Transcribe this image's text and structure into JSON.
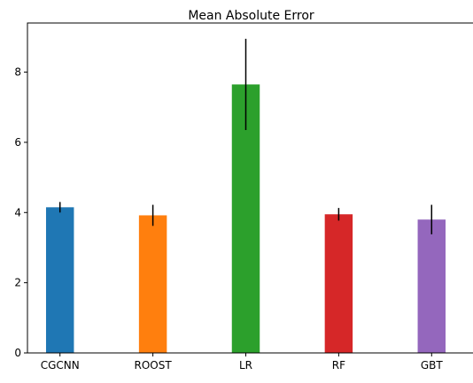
{
  "chart_data": {
    "type": "bar",
    "title": "Mean Absolute Error",
    "xlabel": "",
    "ylabel": "",
    "categories": [
      "CGCNN",
      "ROOST",
      "LR",
      "RF",
      "GBT"
    ],
    "values": [
      4.15,
      3.92,
      7.65,
      3.95,
      3.8
    ],
    "errors": [
      0.15,
      0.3,
      1.3,
      0.18,
      0.42
    ],
    "colors": [
      "#1f77b4",
      "#ff7f0e",
      "#2ca02c",
      "#d62728",
      "#9467bd"
    ],
    "ylim": [
      0,
      9.4
    ],
    "yticks": [
      0,
      2,
      4,
      6,
      8
    ],
    "grid": false,
    "error_bar_color": "#000000"
  }
}
